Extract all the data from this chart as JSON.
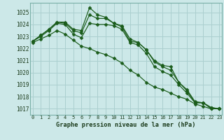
{
  "title": "Graphe pression niveau de la mer (hPa)",
  "background_color": "#cce8e8",
  "grid_color": "#aacfcf",
  "line_color": "#1a5c1a",
  "marker_color": "#1a5c1a",
  "ylim": [
    1016.5,
    1025.8
  ],
  "xlim": [
    -0.3,
    23.3
  ],
  "yticks": [
    1017,
    1018,
    1019,
    1020,
    1021,
    1022,
    1023,
    1024,
    1025
  ],
  "xticks": [
    0,
    1,
    2,
    3,
    4,
    5,
    6,
    7,
    8,
    9,
    10,
    11,
    12,
    13,
    14,
    15,
    16,
    17,
    18,
    19,
    20,
    21,
    22,
    23
  ],
  "xtick_labels": [
    "0",
    "1",
    "2",
    "3",
    "4",
    "5",
    "6",
    "7",
    "8",
    "9",
    "10",
    "11",
    "12",
    "13",
    "14",
    "15",
    "16",
    "17",
    "18",
    "19",
    "20",
    "21",
    "22",
    "23"
  ],
  "series": [
    [
      1022.6,
      1023.1,
      1023.6,
      1024.2,
      1024.2,
      1023.6,
      1023.5,
      1025.4,
      1024.8,
      1024.6,
      1024.1,
      1023.9,
      1022.8,
      1022.5,
      1021.9,
      1021.0,
      1020.6,
      1020.5,
      1019.2,
      1018.6,
      1017.6,
      1017.5,
      1017.1,
      1017.0
    ],
    [
      1022.6,
      1023.1,
      1023.6,
      1024.2,
      1024.1,
      1023.5,
      1023.3,
      1024.8,
      1024.5,
      1024.5,
      1024.1,
      1023.8,
      1022.6,
      1022.5,
      1021.9,
      1020.9,
      1020.5,
      1020.2,
      1019.2,
      1018.5,
      1017.5,
      1017.5,
      1017.1,
      1017.0
    ],
    [
      1022.6,
      1023.0,
      1023.5,
      1024.1,
      1024.0,
      1023.2,
      1022.9,
      1024.1,
      1024.0,
      1024.0,
      1023.9,
      1023.6,
      1022.5,
      1022.3,
      1021.6,
      1020.5,
      1020.1,
      1019.8,
      1019.0,
      1018.3,
      1017.5,
      1017.5,
      1017.0,
      1017.0
    ],
    [
      1022.5,
      1022.8,
      1023.1,
      1023.5,
      1023.2,
      1022.7,
      1022.2,
      1022.0,
      1021.7,
      1021.5,
      1021.2,
      1020.8,
      1020.2,
      1019.8,
      1019.2,
      1018.8,
      1018.6,
      1018.3,
      1018.0,
      1017.8,
      1017.4,
      1017.2,
      1017.0,
      1017.0
    ]
  ]
}
